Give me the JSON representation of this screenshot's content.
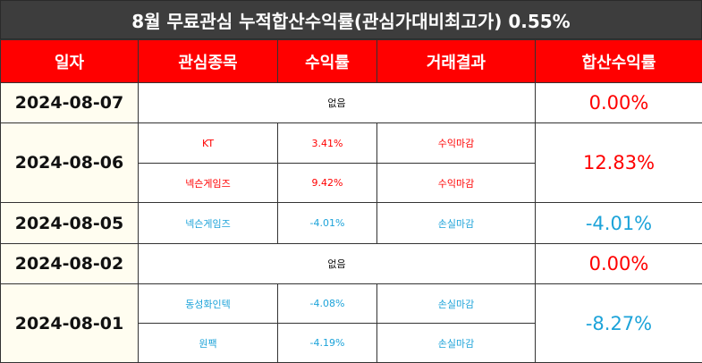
{
  "title": "8월 무료관심 누적합산수익률(관심가대비최고가) 0.55%",
  "headers": [
    "일자",
    "관심종목",
    "수익률",
    "거래결과",
    "합산수익률"
  ],
  "colors": {
    "header_bg": "#ff0000",
    "title_bg": "#3d3d3d",
    "profit": "#ff0000",
    "loss": "#1ca3d9",
    "date_bg": "#fffdf0"
  },
  "rows": [
    {
      "date": "2024-08-07",
      "none_text": "없음",
      "total": "0.00%"
    },
    {
      "date": "2024-08-06",
      "total": "12.83%",
      "items": [
        {
          "stock": "KT",
          "rate": "3.41%",
          "result": "수익마감"
        },
        {
          "stock": "넥슨게임즈",
          "rate": "9.42%",
          "result": "수익마감"
        }
      ]
    },
    {
      "date": "2024-08-05",
      "total": "-4.01%",
      "items": [
        {
          "stock": "넥슨게임즈",
          "rate": "-4.01%",
          "result": "손실마감"
        }
      ]
    },
    {
      "date": "2024-08-02",
      "none_text": "없음",
      "total": "0.00%"
    },
    {
      "date": "2024-08-01",
      "total": "-8.27%",
      "items": [
        {
          "stock": "동성화인텍",
          "rate": "-4.08%",
          "result": "손실마감"
        },
        {
          "stock": "원팩",
          "rate": "-4.19%",
          "result": "손실마감"
        }
      ]
    }
  ]
}
